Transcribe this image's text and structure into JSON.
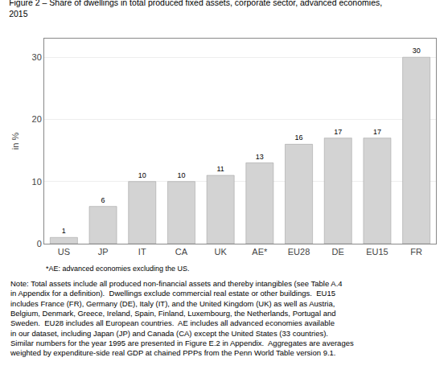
{
  "chart_data": {
    "type": "bar",
    "title": "Figure 2 – Share of dwellings in total produced fixed assets, corporate sector, advanced economies,\n2015",
    "categories": [
      "US",
      "JP",
      "IT",
      "CA",
      "UK",
      "AE*",
      "EU28",
      "DE",
      "EU15",
      "FR"
    ],
    "values": [
      1,
      6,
      10,
      10,
      11,
      13,
      16,
      17,
      17,
      30
    ],
    "color": "#d3d3d3",
    "y_label": "in %",
    "ylim": [
      0,
      33
    ],
    "yticks": [
      0,
      10,
      20,
      30
    ],
    "grid": true,
    "data_labels": true,
    "annotations": [
      "*AE: advanced economies excluding the US.",
      "Note: Total assets include all produced non-financial assets and thereby intangibles (see Table A.4\nin Appendix for a definition).  Dwellings exclude commercial real estate or other buildings.  EU15\nincludes France (FR), Germany (DE), Italy (IT), and the United Kingdom (UK) as well as Austria,\nBelgium, Denmark, Greece, Ireland, Spain, Finland, Luxembourg, the Netherlands, Portugal and\nSweden.  EU28 includes all European countries.  AE includes all advanced economies available\nin our dataset, including Japan (JP) and Canada (CA) except the United States (33 countries).\nSimilar numbers for the year 1995 are presented in Figure E.2 in Appendix.  Aggregates are averages\nweighted by expenditure-side real GDP at chained PPPs from the Penn World Table version 9.1."
    ]
  }
}
